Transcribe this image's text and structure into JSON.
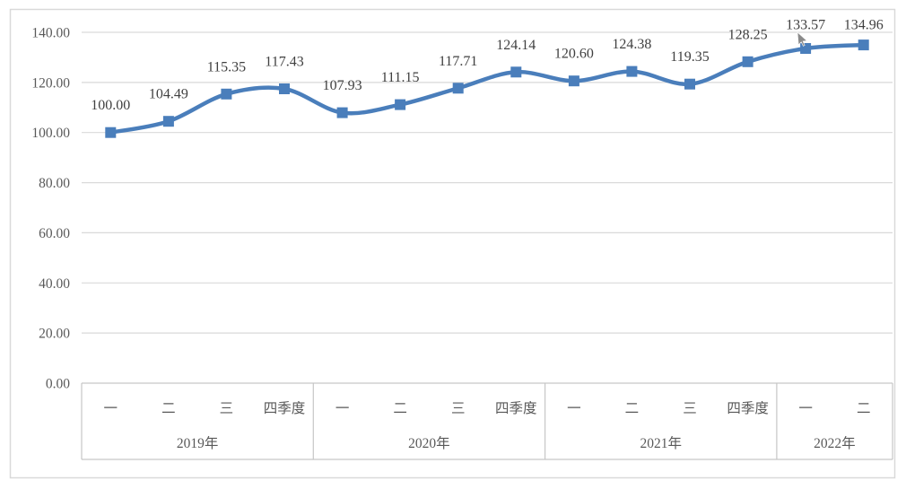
{
  "chart_data": {
    "type": "line",
    "smooth": true,
    "title": "",
    "xlabel": "",
    "ylabel": "",
    "legend": "none",
    "grid": true,
    "values": [
      100.0,
      104.49,
      115.35,
      117.43,
      107.93,
      111.15,
      117.71,
      124.14,
      120.6,
      124.38,
      119.35,
      128.25,
      133.57,
      134.96
    ],
    "data_labels": [
      "100.00",
      "104.49",
      "115.35",
      "117.43",
      "107.93",
      "111.15",
      "117.71",
      "124.14",
      "120.60",
      "124.38",
      "119.35",
      "128.25",
      "133.57",
      "134.96"
    ],
    "x_axis": {
      "groups": [
        {
          "year": "2019年",
          "quarters": [
            "一",
            "二",
            "三",
            "四季度"
          ]
        },
        {
          "year": "2020年",
          "quarters": [
            "一",
            "二",
            "三",
            "四季度"
          ]
        },
        {
          "year": "2021年",
          "quarters": [
            "一",
            "二",
            "三",
            "四季度"
          ]
        },
        {
          "year": "2022年",
          "quarters": [
            "一",
            "二"
          ]
        }
      ]
    },
    "y_axis": {
      "min": 0,
      "max": 140,
      "tick_step": 20,
      "ticks": [
        "0.00",
        "20.00",
        "40.00",
        "60.00",
        "80.00",
        "100.00",
        "120.00",
        "140.00"
      ]
    },
    "colors": {
      "line": "#4A7EBB",
      "marker": "#4A7EBB",
      "gridline": "#D9D9D9",
      "axis_table_line": "#C6C6C6",
      "chart_border": "#D9D9D9",
      "axis_text": "#595959",
      "data_label_text": "#404040",
      "background": "#FFFFFF",
      "cursor": "#8A8A8A"
    }
  }
}
